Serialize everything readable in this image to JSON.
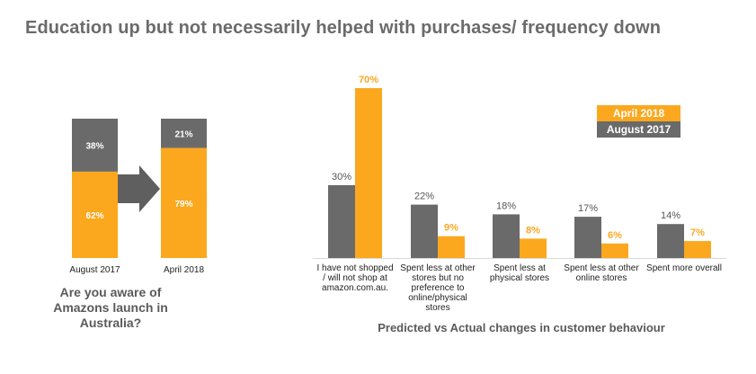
{
  "title": "Education up but not necessarily helped with purchases/ frequency down",
  "colors": {
    "orange": "#fba81f",
    "gray": "#6a6a6a",
    "arrow": "#5f5f5f"
  },
  "chart_data": [
    {
      "type": "bar",
      "stacked": true,
      "title": "Are you aware of Amazons launch in Australia?",
      "categories": [
        "August 2017",
        "April 2018"
      ],
      "series": [
        {
          "name": "",
          "color": "#fba81f",
          "values": [
            62,
            79
          ],
          "labels": [
            "62%",
            "79%"
          ]
        },
        {
          "name": "",
          "color": "#6a6a6a",
          "values": [
            38,
            21
          ],
          "labels": [
            "38%",
            "21%"
          ]
        }
      ],
      "ylim": [
        0,
        100
      ]
    },
    {
      "type": "bar",
      "title": "Predicted vs Actual changes in customer behaviour",
      "categories": [
        [
          "I have not shopped",
          "/ will not shop at",
          "amazon.com.au."
        ],
        [
          "Spent less at other",
          "stores but no",
          "preference to",
          "online/physical",
          "stores"
        ],
        [
          "Spent less at",
          "physical stores"
        ],
        [
          "Spent less at other",
          "online stores"
        ],
        [
          "Spent more overall"
        ]
      ],
      "series": [
        {
          "name": "August 2017",
          "color": "#6a6a6a",
          "values": [
            30,
            22,
            18,
            17,
            14
          ],
          "labels": [
            "30%",
            "22%",
            "18%",
            "17%",
            "14%"
          ]
        },
        {
          "name": "April 2018",
          "color": "#fba81f",
          "values": [
            70,
            9,
            8,
            6,
            7
          ],
          "labels": [
            "70%",
            "9%",
            "8%",
            "6%",
            "7%"
          ]
        }
      ],
      "legend": {
        "position": "top-right",
        "order": [
          "April 2018",
          "August 2017"
        ]
      },
      "ylim": [
        0,
        70
      ]
    }
  ]
}
